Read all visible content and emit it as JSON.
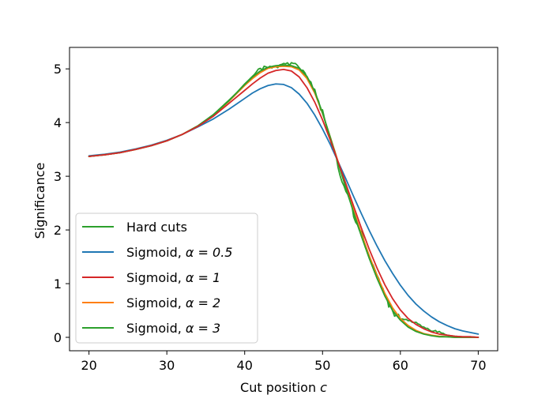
{
  "chart_data": {
    "type": "line",
    "xlabel": "Cut position",
    "xlabel_symbol": "c",
    "ylabel": "Significance",
    "xlim": [
      17.5,
      72.5
    ],
    "ylim": [
      -0.25,
      5.4
    ],
    "xticks": [
      20,
      30,
      40,
      50,
      60,
      70
    ],
    "yticks": [
      0,
      1,
      2,
      3,
      4,
      5
    ],
    "grid": false,
    "legend_position": "lower-left",
    "series": [
      {
        "name": "Hard cuts",
        "color": "#2ca02c",
        "noisy": true,
        "x": [
          20,
          22,
          24,
          26,
          28,
          30,
          32,
          34,
          36,
          38,
          39,
          40,
          41,
          42,
          43,
          44,
          45,
          46,
          47,
          48,
          49,
          50,
          51,
          52,
          53,
          54,
          55,
          56,
          57,
          58,
          59,
          60,
          61,
          62,
          63,
          64,
          65,
          66,
          67,
          68,
          69,
          70
        ],
        "y": [
          3.37,
          3.4,
          3.44,
          3.5,
          3.57,
          3.66,
          3.78,
          3.94,
          4.15,
          4.42,
          4.56,
          4.72,
          4.86,
          5.0,
          5.05,
          5.04,
          5.08,
          5.1,
          5.05,
          4.85,
          4.55,
          4.18,
          3.7,
          3.18,
          2.72,
          2.3,
          1.92,
          1.55,
          1.18,
          0.78,
          0.48,
          0.34,
          0.32,
          0.26,
          0.17,
          0.13,
          0.1,
          0.04,
          0.02,
          0.01,
          0.01,
          0.0
        ]
      },
      {
        "name": "Sigmoid, α = 0.5",
        "label_prefix": "Sigmoid, ",
        "label_math": "α = 0.5",
        "color": "#1f77b4",
        "noisy": false,
        "x": [
          20,
          22,
          24,
          26,
          28,
          30,
          32,
          34,
          36,
          38,
          40,
          41,
          42,
          43,
          44,
          45,
          46,
          47,
          48,
          49,
          50,
          51,
          52,
          53,
          54,
          55,
          56,
          57,
          58,
          59,
          60,
          61,
          62,
          63,
          64,
          65,
          66,
          67,
          68,
          69,
          70
        ],
        "y": [
          3.38,
          3.41,
          3.45,
          3.51,
          3.58,
          3.67,
          3.78,
          3.92,
          4.07,
          4.25,
          4.45,
          4.55,
          4.63,
          4.69,
          4.72,
          4.71,
          4.65,
          4.53,
          4.36,
          4.14,
          3.88,
          3.59,
          3.27,
          2.95,
          2.62,
          2.3,
          1.99,
          1.7,
          1.43,
          1.19,
          0.97,
          0.78,
          0.62,
          0.49,
          0.38,
          0.29,
          0.22,
          0.16,
          0.12,
          0.09,
          0.06
        ]
      },
      {
        "name": "Sigmoid, α = 1",
        "label_prefix": "Sigmoid, ",
        "label_math": "α = 1",
        "color": "#d62728",
        "noisy": false,
        "x": [
          20,
          22,
          24,
          26,
          28,
          30,
          32,
          34,
          36,
          38,
          40,
          41,
          42,
          43,
          44,
          45,
          46,
          47,
          48,
          49,
          50,
          51,
          52,
          53,
          54,
          55,
          56,
          57,
          58,
          59,
          60,
          61,
          62,
          63,
          64,
          65,
          66,
          67,
          68,
          69,
          70
        ],
        "y": [
          3.37,
          3.4,
          3.44,
          3.5,
          3.57,
          3.66,
          3.78,
          3.93,
          4.12,
          4.36,
          4.6,
          4.72,
          4.83,
          4.92,
          4.97,
          4.99,
          4.96,
          4.85,
          4.65,
          4.38,
          4.05,
          3.67,
          3.27,
          2.86,
          2.44,
          2.03,
          1.64,
          1.29,
          0.98,
          0.72,
          0.51,
          0.35,
          0.24,
          0.16,
          0.1,
          0.06,
          0.04,
          0.02,
          0.01,
          0.01,
          0.0
        ]
      },
      {
        "name": "Sigmoid, α = 2",
        "label_prefix": "Sigmoid, ",
        "label_math": "α = 2",
        "color": "#ff7f0e",
        "noisy": false,
        "x": [
          20,
          22,
          24,
          26,
          28,
          30,
          32,
          34,
          36,
          38,
          40,
          41,
          42,
          43,
          44,
          45,
          46,
          47,
          48,
          49,
          50,
          51,
          52,
          53,
          54,
          55,
          56,
          57,
          58,
          59,
          60,
          61,
          62,
          63,
          64,
          65,
          66,
          67,
          68,
          69,
          70
        ],
        "y": [
          3.37,
          3.4,
          3.44,
          3.5,
          3.57,
          3.66,
          3.78,
          3.94,
          4.14,
          4.4,
          4.69,
          4.82,
          4.93,
          5.01,
          5.04,
          5.05,
          5.04,
          4.98,
          4.82,
          4.55,
          4.17,
          3.73,
          3.27,
          2.81,
          2.36,
          1.93,
          1.52,
          1.15,
          0.82,
          0.55,
          0.35,
          0.22,
          0.13,
          0.07,
          0.04,
          0.02,
          0.01,
          0.0,
          0.0,
          0.0,
          0.0
        ]
      },
      {
        "name": "Sigmoid, α = 3",
        "label_prefix": "Sigmoid, ",
        "label_math": "α = 3",
        "color": "#2ca02c",
        "noisy": false,
        "x": [
          20,
          22,
          24,
          26,
          28,
          30,
          32,
          34,
          36,
          38,
          40,
          41,
          42,
          43,
          44,
          45,
          46,
          47,
          48,
          49,
          50,
          51,
          52,
          53,
          54,
          55,
          56,
          57,
          58,
          59,
          60,
          61,
          62,
          63,
          64,
          65,
          66,
          67,
          68,
          69,
          70
        ],
        "y": [
          3.37,
          3.4,
          3.44,
          3.5,
          3.57,
          3.66,
          3.78,
          3.94,
          4.15,
          4.41,
          4.71,
          4.85,
          4.96,
          5.03,
          5.06,
          5.07,
          5.06,
          5.01,
          4.86,
          4.58,
          4.18,
          3.72,
          3.25,
          2.78,
          2.32,
          1.88,
          1.47,
          1.1,
          0.77,
          0.5,
          0.32,
          0.19,
          0.11,
          0.06,
          0.03,
          0.01,
          0.01,
          0.0,
          0.0,
          0.0,
          0.0
        ]
      }
    ]
  }
}
